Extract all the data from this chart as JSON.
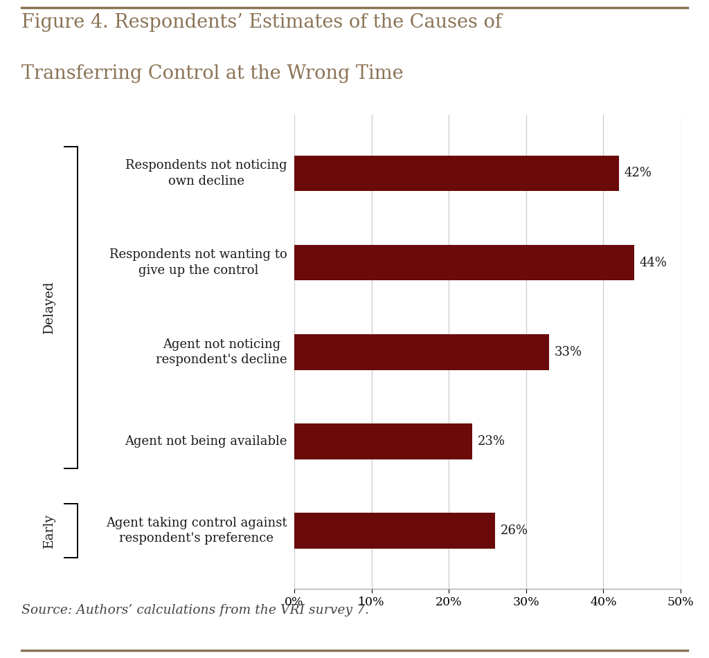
{
  "title_line1": "Figure 4. Respondents’ Estimates of the Causes of",
  "title_line2": "Transferring Control at the Wrong Time",
  "source_text": "Source: Authors’ calculations from the VRI survey 7.",
  "categories": [
    "Respondents not noticing\nown decline",
    "Respondents not wanting to\ngive up the control",
    "Agent not noticing\nrespondent's decline",
    "Agent not being available",
    "Agent taking control against\nrespondent's preference"
  ],
  "values": [
    42,
    44,
    33,
    23,
    26
  ],
  "bar_color": "#6B0A0A",
  "label_color": "#1a1a1a",
  "title_color": "#8B7355",
  "background_color": "#FFFFFF",
  "delayed_label": "Delayed",
  "early_label": "Early",
  "xlim": [
    0,
    50
  ],
  "xtick_values": [
    0,
    10,
    20,
    30,
    40,
    50
  ],
  "xtick_labels": [
    "0%",
    "10%",
    "20%",
    "30%",
    "40%",
    "50%"
  ],
  "bar_height": 0.4,
  "figsize": [
    10.24,
    9.51
  ],
  "dpi": 100,
  "border_color": "#8B7355"
}
